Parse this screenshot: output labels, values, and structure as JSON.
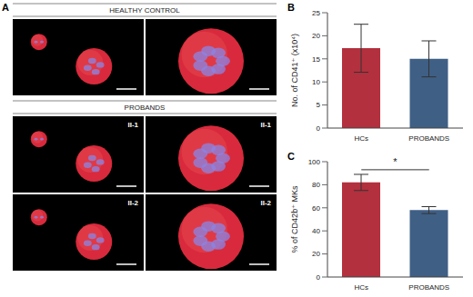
{
  "panel_a": {
    "panel_label": "A",
    "sections": [
      {
        "header": "HEALTHY CONTROL"
      },
      {
        "header": "PROBANDS",
        "row_labels": [
          "II-1",
          "II-2"
        ]
      }
    ]
  },
  "chart_data": [
    {
      "panel_label": "B",
      "type": "bar",
      "y_label": "No. of CD41⁺ (x10⁴)",
      "categories": [
        "HCs",
        "PROBANDS"
      ],
      "values": [
        17.3,
        15.0
      ],
      "errors": [
        5.2,
        3.9
      ],
      "colors": [
        "#b3303e",
        "#3f5f85"
      ],
      "ylim": [
        0,
        25
      ],
      "yticks": [
        0,
        5,
        10,
        15,
        20,
        25
      ]
    },
    {
      "panel_label": "C",
      "type": "bar",
      "y_label": "% of CD42b⁺ MKs",
      "categories": [
        "HCs",
        "PROBANDS"
      ],
      "values": [
        82,
        58
      ],
      "errors": [
        7,
        3
      ],
      "colors": [
        "#b3303e",
        "#3f5f85"
      ],
      "ylim": [
        0,
        100
      ],
      "yticks": [
        0,
        20,
        40,
        60,
        80,
        100
      ],
      "significance": {
        "label": "*",
        "y": 93,
        "between": [
          "HCs",
          "PROBANDS"
        ]
      }
    }
  ]
}
